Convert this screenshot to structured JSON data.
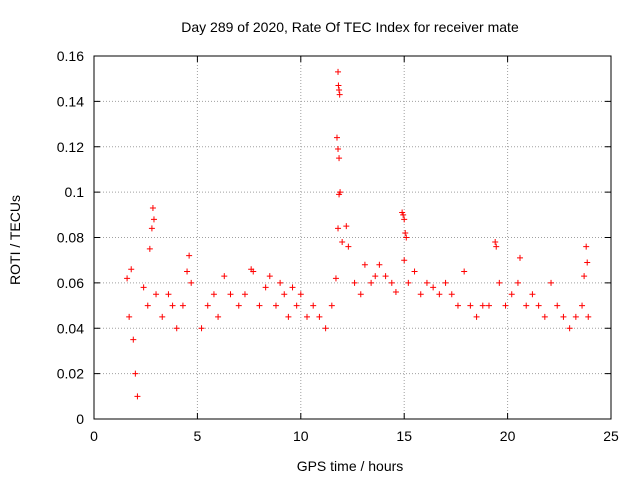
{
  "chart_data": {
    "type": "scatter",
    "title": "Day 289 of 2020, Rate Of TEC Index for receiver mate",
    "xlabel": "GPS time / hours",
    "ylabel": "ROTI / TECUs",
    "xlim": [
      0,
      25
    ],
    "ylim": [
      0,
      0.16
    ],
    "grid": true,
    "marker": "+",
    "series_color": "#ff0000",
    "x_ticks": [
      {
        "value": 0,
        "label": "0"
      },
      {
        "value": 5,
        "label": "5"
      },
      {
        "value": 10,
        "label": "10"
      },
      {
        "value": 15,
        "label": "15"
      },
      {
        "value": 20,
        "label": "20"
      },
      {
        "value": 25,
        "label": "25"
      }
    ],
    "y_ticks": [
      {
        "value": 0,
        "label": "0"
      },
      {
        "value": 0.02,
        "label": "0.02"
      },
      {
        "value": 0.04,
        "label": "0.04"
      },
      {
        "value": 0.06,
        "label": "0.06"
      },
      {
        "value": 0.08,
        "label": "0.08"
      },
      {
        "value": 0.1,
        "label": "0.1"
      },
      {
        "value": 0.12,
        "label": "0.12"
      },
      {
        "value": 0.14,
        "label": "0.14"
      },
      {
        "value": 0.16,
        "label": "0.16"
      }
    ],
    "points": [
      [
        1.6,
        0.062
      ],
      [
        1.7,
        0.045
      ],
      [
        1.8,
        0.066
      ],
      [
        1.9,
        0.035
      ],
      [
        2.0,
        0.02
      ],
      [
        2.1,
        0.01
      ],
      [
        2.4,
        0.058
      ],
      [
        2.6,
        0.05
      ],
      [
        2.7,
        0.075
      ],
      [
        2.8,
        0.084
      ],
      [
        2.85,
        0.093
      ],
      [
        2.9,
        0.088
      ],
      [
        3.0,
        0.055
      ],
      [
        3.3,
        0.045
      ],
      [
        3.6,
        0.055
      ],
      [
        3.8,
        0.05
      ],
      [
        4.0,
        0.04
      ],
      [
        4.3,
        0.05
      ],
      [
        4.5,
        0.065
      ],
      [
        4.6,
        0.072
      ],
      [
        4.7,
        0.06
      ],
      [
        5.2,
        0.04
      ],
      [
        5.5,
        0.05
      ],
      [
        5.8,
        0.055
      ],
      [
        6.0,
        0.045
      ],
      [
        6.3,
        0.063
      ],
      [
        6.6,
        0.055
      ],
      [
        7.0,
        0.05
      ],
      [
        7.3,
        0.055
      ],
      [
        7.6,
        0.066
      ],
      [
        7.7,
        0.065
      ],
      [
        8.0,
        0.05
      ],
      [
        8.3,
        0.058
      ],
      [
        8.5,
        0.063
      ],
      [
        8.8,
        0.05
      ],
      [
        9.0,
        0.06
      ],
      [
        9.2,
        0.055
      ],
      [
        9.4,
        0.045
      ],
      [
        9.6,
        0.058
      ],
      [
        9.8,
        0.05
      ],
      [
        10.0,
        0.055
      ],
      [
        10.3,
        0.045
      ],
      [
        10.6,
        0.05
      ],
      [
        10.9,
        0.045
      ],
      [
        11.2,
        0.04
      ],
      [
        11.5,
        0.05
      ],
      [
        11.7,
        0.062
      ],
      [
        11.8,
        0.153
      ],
      [
        11.82,
        0.147
      ],
      [
        11.85,
        0.145
      ],
      [
        11.88,
        0.143
      ],
      [
        11.75,
        0.124
      ],
      [
        11.8,
        0.119
      ],
      [
        11.85,
        0.115
      ],
      [
        11.9,
        0.1
      ],
      [
        11.85,
        0.099
      ],
      [
        11.8,
        0.084
      ],
      [
        12.0,
        0.078
      ],
      [
        12.2,
        0.085
      ],
      [
        12.3,
        0.076
      ],
      [
        12.6,
        0.06
      ],
      [
        12.9,
        0.055
      ],
      [
        13.1,
        0.068
      ],
      [
        13.4,
        0.06
      ],
      [
        13.6,
        0.063
      ],
      [
        13.8,
        0.068
      ],
      [
        14.1,
        0.063
      ],
      [
        14.4,
        0.06
      ],
      [
        14.6,
        0.056
      ],
      [
        14.9,
        0.091
      ],
      [
        14.95,
        0.09
      ],
      [
        15.0,
        0.088
      ],
      [
        15.05,
        0.082
      ],
      [
        15.1,
        0.08
      ],
      [
        15.0,
        0.07
      ],
      [
        15.2,
        0.06
      ],
      [
        15.5,
        0.065
      ],
      [
        15.8,
        0.055
      ],
      [
        16.1,
        0.06
      ],
      [
        16.4,
        0.058
      ],
      [
        16.7,
        0.055
      ],
      [
        17.0,
        0.06
      ],
      [
        17.3,
        0.055
      ],
      [
        17.6,
        0.05
      ],
      [
        17.9,
        0.065
      ],
      [
        18.2,
        0.05
      ],
      [
        18.5,
        0.045
      ],
      [
        18.8,
        0.05
      ],
      [
        19.1,
        0.05
      ],
      [
        19.4,
        0.078
      ],
      [
        19.45,
        0.076
      ],
      [
        19.6,
        0.06
      ],
      [
        19.9,
        0.05
      ],
      [
        20.2,
        0.055
      ],
      [
        20.5,
        0.06
      ],
      [
        20.6,
        0.071
      ],
      [
        20.9,
        0.05
      ],
      [
        21.2,
        0.055
      ],
      [
        21.5,
        0.05
      ],
      [
        21.8,
        0.045
      ],
      [
        22.1,
        0.06
      ],
      [
        22.4,
        0.05
      ],
      [
        22.7,
        0.045
      ],
      [
        23.0,
        0.04
      ],
      [
        23.3,
        0.045
      ],
      [
        23.6,
        0.05
      ],
      [
        23.7,
        0.063
      ],
      [
        23.8,
        0.076
      ],
      [
        23.85,
        0.069
      ],
      [
        23.9,
        0.045
      ]
    ]
  }
}
